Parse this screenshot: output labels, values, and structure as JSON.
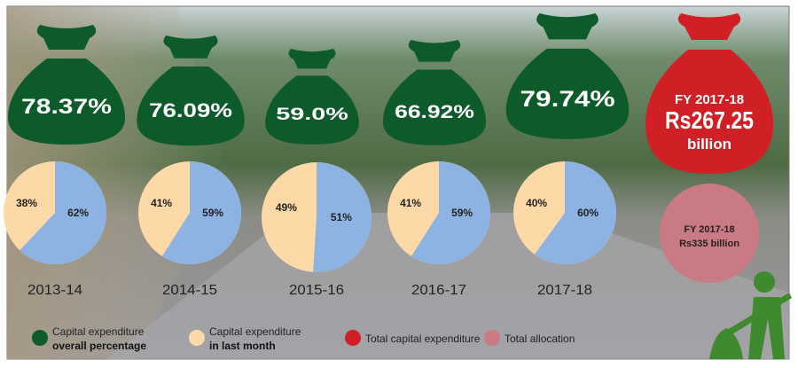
{
  "colors": {
    "green": "#0d5a2a",
    "beige": "#fcd9a6",
    "blue": "#8db3e2",
    "red": "#d01f25",
    "pink": "#c97a82"
  },
  "chart_data": {
    "type": "pie",
    "title": "",
    "years": [
      {
        "label": "2013-14",
        "overall_percentage": "78.37%",
        "overall_value": 78.37,
        "last_month": 38,
        "other": 62,
        "last_month_label": "38%",
        "other_label": "62%"
      },
      {
        "label": "2014-15",
        "overall_percentage": "76.09%",
        "overall_value": 76.09,
        "last_month": 41,
        "other": 59,
        "last_month_label": "41%",
        "other_label": "59%"
      },
      {
        "label": "2015-16",
        "overall_percentage": "59.0%",
        "overall_value": 59.0,
        "last_month": 49,
        "other": 51,
        "last_month_label": "49%",
        "other_label": "51%"
      },
      {
        "label": "2016-17",
        "overall_percentage": "66.92%",
        "overall_value": 66.92,
        "last_month": 41,
        "other": 59,
        "last_month_label": "41%",
        "other_label": "59%"
      },
      {
        "label": "2017-18",
        "overall_percentage": "79.74%",
        "overall_value": 79.74,
        "last_month": 40,
        "other": 60,
        "last_month_label": "40%",
        "other_label": "60%"
      }
    ],
    "total_capital_expenditure": {
      "line1": "FY 2017-18",
      "line2": "Rs267.25",
      "line3": "billion"
    },
    "total_allocation": {
      "line1": "FY 2017-18",
      "line2": "Rs335 billion"
    },
    "legend": [
      {
        "line1": "Capital expenditure",
        "line2": "overall percentage",
        "color": "green"
      },
      {
        "line1": "Capital expenditure",
        "line2": "in last month",
        "color": "beige"
      },
      {
        "line1": "Total capital expenditure",
        "line2": "",
        "color": "red"
      },
      {
        "line1": "Total allocation",
        "line2": "",
        "color": "pink"
      }
    ]
  }
}
